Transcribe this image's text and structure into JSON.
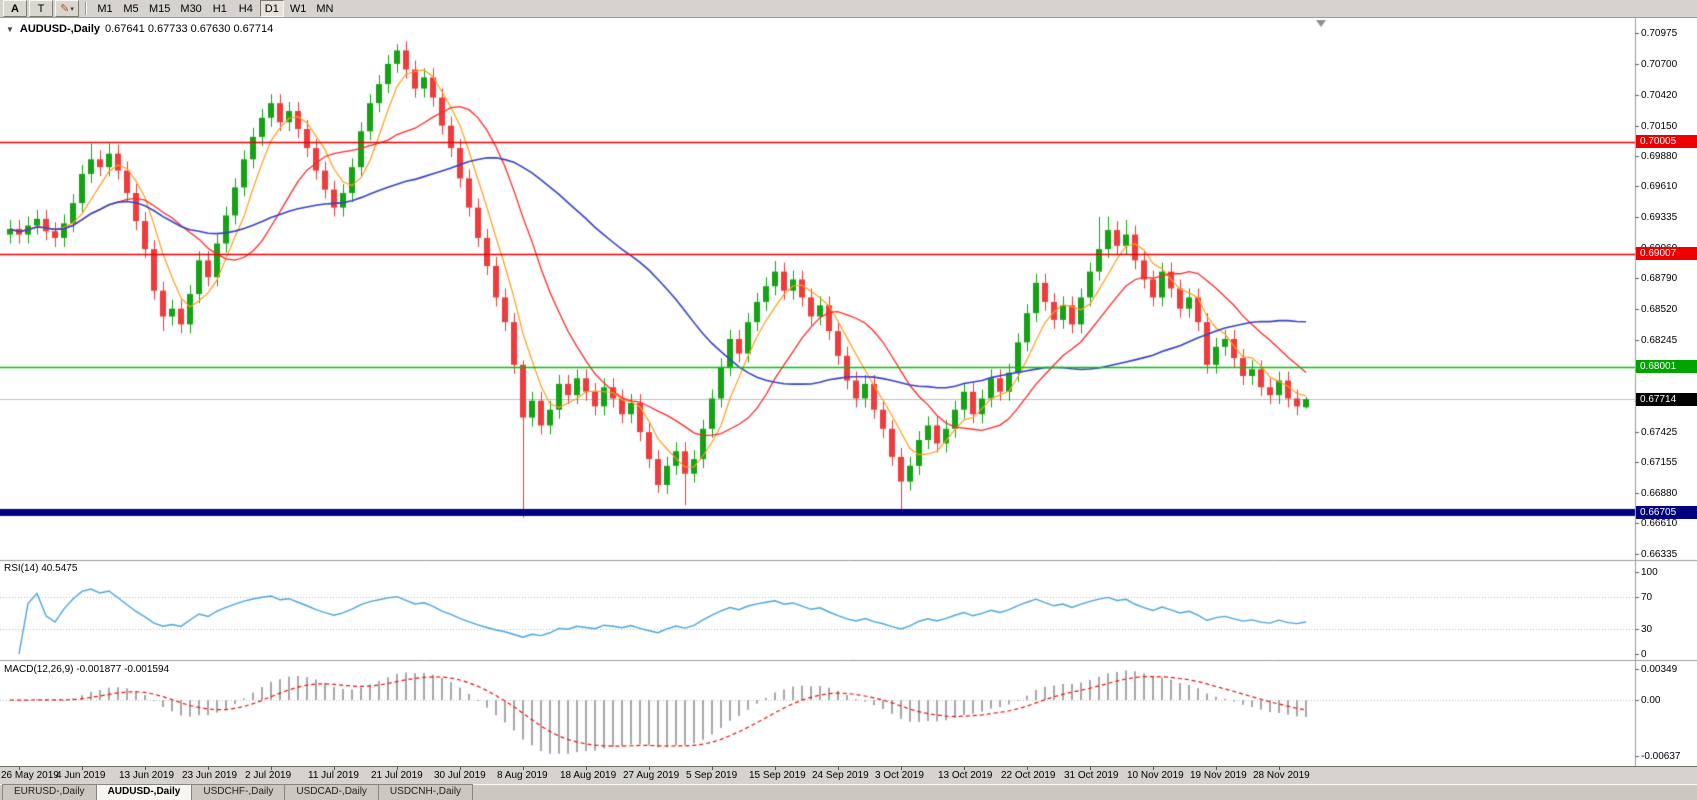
{
  "toolbar": {
    "left_buttons": [
      {
        "label": "A"
      },
      {
        "label": "T"
      }
    ],
    "draw_tool": {
      "icon": "pencil-icon",
      "dropdown": "▾"
    },
    "timeframes": [
      {
        "label": "M1",
        "active": false
      },
      {
        "label": "M5",
        "active": false
      },
      {
        "label": "M15",
        "active": false
      },
      {
        "label": "M30",
        "active": false
      },
      {
        "label": "H1",
        "active": false
      },
      {
        "label": "H4",
        "active": false
      },
      {
        "label": "D1",
        "active": true
      },
      {
        "label": "W1",
        "active": false
      },
      {
        "label": "MN",
        "active": false
      }
    ]
  },
  "chart": {
    "title": "AUDUSD-,Daily",
    "quote_line": "0.67641 0.67733 0.67630 0.67714"
  },
  "panels": {
    "rsi_label": "RSI(14) 40.5475",
    "macd_label": "MACD(12,26,9) -0.001877 -0.001594"
  },
  "tabs": [
    {
      "label": "EURUSD-,Daily",
      "active": false
    },
    {
      "label": "AUDUSD-,Daily",
      "active": true
    },
    {
      "label": "USDCHF-,Daily",
      "active": false
    },
    {
      "label": "USDCAD-,Daily",
      "active": false
    },
    {
      "label": "USDCNH-,Daily",
      "active": false
    }
  ],
  "chart_data": {
    "type": "candlestick",
    "symbol": "AUDUSD",
    "timeframe": "Daily",
    "quote": {
      "open": 0.67641,
      "high": 0.67733,
      "low": 0.6763,
      "close": 0.67714
    },
    "colors": {
      "up": "#14a314",
      "down": "#ef3b3b",
      "background": "#ffffff",
      "current_line": "#c0c0c0",
      "separator": "#9c9c9c"
    },
    "y_axis": {
      "min": 0.66335,
      "max": 0.70975,
      "ticks": [
        "0.70975",
        "0.70700",
        "0.70420",
        "0.70150",
        "0.69880",
        "0.69610",
        "0.69335",
        "0.69060",
        "0.68790",
        "0.68520",
        "0.68245",
        "0.67970",
        "0.67700",
        "0.67425",
        "0.67155",
        "0.66880",
        "0.66610",
        "0.66335"
      ]
    },
    "hlines": [
      {
        "value": 0.70005,
        "label": "0.70005",
        "color": "#ee0000",
        "width": 1.4,
        "label_bg": "#ee0000"
      },
      {
        "value": 0.69007,
        "label": "0.69007",
        "color": "#ee0000",
        "width": 1.4,
        "label_bg": "#ee0000"
      },
      {
        "value": 0.68001,
        "label": "0.68001",
        "color": "#00c400",
        "width": 1.6,
        "label_bg": "#00a400"
      },
      {
        "value": 0.66705,
        "label": "0.66705",
        "color": "#000080",
        "width": 7,
        "label_bg": "#000080"
      }
    ],
    "current_price": {
      "value": 0.67714,
      "label": "0.67714",
      "label_bg": "#000000"
    },
    "moving_averages": [
      {
        "period": 5,
        "color": "#ff9d1e",
        "width": 1.2
      },
      {
        "period": 13,
        "color": "#ff2a2a",
        "width": 1.3
      },
      {
        "period": 34,
        "color": "#3742c8",
        "width": 1.6
      }
    ],
    "x_axis": {
      "labels": [
        "26 May 2019",
        "4 Jun 2019",
        "13 Jun 2019",
        "23 Jun 2019",
        "2 Jul 2019",
        "11 Jul 2019",
        "21 Jul 2019",
        "30 Jul 2019",
        "8 Aug 2019",
        "18 Aug 2019",
        "27 Aug 2019",
        "5 Sep 2019",
        "15 Sep 2019",
        "24 Sep 2019",
        "3 Oct 2019",
        "13 Oct 2019",
        "22 Oct 2019",
        "31 Oct 2019",
        "10 Nov 2019",
        "19 Nov 2019",
        "28 Nov 2019"
      ],
      "first_label_index": 1,
      "label_step": 7
    },
    "rsi": {
      "period": 14,
      "current": 40.5475,
      "color": "#4da4de",
      "scale_ticks": [
        "100",
        "70",
        "30",
        "0"
      ],
      "scale_values": [
        100,
        70,
        30,
        0
      ],
      "levels": [
        70,
        30
      ]
    },
    "macd": {
      "fast": 12,
      "slow": 26,
      "signal": 9,
      "macd_current": -0.001877,
      "signal_current": -0.001594,
      "scale_ticks": [
        "0.00349",
        "0.00",
        "-0.00637"
      ],
      "scale_values": [
        0.00349,
        0,
        -0.00637
      ],
      "histogram_color": "#a8a8a8",
      "signal_color": "#ee1111"
    },
    "ohlc": [
      [
        0.6918,
        0.6931,
        0.691,
        0.6923
      ],
      [
        0.6923,
        0.6931,
        0.691,
        0.6918
      ],
      [
        0.6918,
        0.6934,
        0.691,
        0.6926
      ],
      [
        0.6926,
        0.694,
        0.6918,
        0.6932
      ],
      [
        0.6932,
        0.694,
        0.6913,
        0.6921
      ],
      [
        0.6921,
        0.6929,
        0.6907,
        0.6915
      ],
      [
        0.6915,
        0.6936,
        0.6907,
        0.6928
      ],
      [
        0.6928,
        0.6954,
        0.692,
        0.6946
      ],
      [
        0.6946,
        0.698,
        0.6938,
        0.6972
      ],
      [
        0.6972,
        0.6999,
        0.6964,
        0.6985
      ],
      [
        0.6985,
        0.6993,
        0.697,
        0.6978
      ],
      [
        0.6978,
        0.6999,
        0.697,
        0.699
      ],
      [
        0.699,
        0.6998,
        0.6967,
        0.6975
      ],
      [
        0.6975,
        0.6983,
        0.6947,
        0.6955
      ],
      [
        0.6955,
        0.6963,
        0.6922,
        0.693
      ],
      [
        0.693,
        0.6938,
        0.6897,
        0.6905
      ],
      [
        0.6905,
        0.6913,
        0.686,
        0.6868
      ],
      [
        0.6868,
        0.6876,
        0.6832,
        0.6845
      ],
      [
        0.6845,
        0.686,
        0.6837,
        0.6852
      ],
      [
        0.6852,
        0.686,
        0.683,
        0.6838
      ],
      [
        0.6838,
        0.6873,
        0.683,
        0.6865
      ],
      [
        0.6865,
        0.6903,
        0.6857,
        0.6895
      ],
      [
        0.6895,
        0.6903,
        0.6872,
        0.688
      ],
      [
        0.688,
        0.6918,
        0.6872,
        0.691
      ],
      [
        0.691,
        0.6943,
        0.6902,
        0.6935
      ],
      [
        0.6935,
        0.6968,
        0.6927,
        0.696
      ],
      [
        0.696,
        0.6993,
        0.6952,
        0.6985
      ],
      [
        0.6985,
        0.7013,
        0.6977,
        0.7005
      ],
      [
        0.7005,
        0.703,
        0.6997,
        0.7022
      ],
      [
        0.7022,
        0.7043,
        0.7014,
        0.7035
      ],
      [
        0.7035,
        0.7043,
        0.701,
        0.7018
      ],
      [
        0.7018,
        0.7036,
        0.701,
        0.7028
      ],
      [
        0.7028,
        0.7036,
        0.7004,
        0.7012
      ],
      [
        0.7012,
        0.702,
        0.6987,
        0.6995
      ],
      [
        0.6995,
        0.7003,
        0.6967,
        0.6975
      ],
      [
        0.6975,
        0.6983,
        0.695,
        0.6958
      ],
      [
        0.6958,
        0.6966,
        0.6934,
        0.6942
      ],
      [
        0.6942,
        0.6963,
        0.6934,
        0.6955
      ],
      [
        0.6955,
        0.6986,
        0.6947,
        0.6978
      ],
      [
        0.6978,
        0.7018,
        0.697,
        0.701
      ],
      [
        0.701,
        0.7043,
        0.7002,
        0.7035
      ],
      [
        0.7035,
        0.706,
        0.7027,
        0.7052
      ],
      [
        0.7052,
        0.7078,
        0.7044,
        0.707
      ],
      [
        0.707,
        0.70875,
        0.7062,
        0.7082
      ],
      [
        0.7082,
        0.709,
        0.7057,
        0.7065
      ],
      [
        0.7065,
        0.7073,
        0.704,
        0.7048
      ],
      [
        0.7048,
        0.7066,
        0.704,
        0.7058
      ],
      [
        0.7058,
        0.7066,
        0.7032,
        0.704
      ],
      [
        0.704,
        0.7048,
        0.7007,
        0.7015
      ],
      [
        0.7015,
        0.7023,
        0.6987,
        0.6995
      ],
      [
        0.6995,
        0.7003,
        0.696,
        0.6968
      ],
      [
        0.6968,
        0.6976,
        0.6934,
        0.6942
      ],
      [
        0.6942,
        0.695,
        0.6907,
        0.6915
      ],
      [
        0.6915,
        0.6923,
        0.6882,
        0.689
      ],
      [
        0.689,
        0.6898,
        0.6854,
        0.6862
      ],
      [
        0.6862,
        0.687,
        0.6832,
        0.684
      ],
      [
        0.684,
        0.6848,
        0.6794,
        0.6802
      ],
      [
        0.6802,
        0.6806,
        0.6666,
        0.6755
      ],
      [
        0.6755,
        0.6778,
        0.6747,
        0.677
      ],
      [
        0.677,
        0.6778,
        0.674,
        0.6748
      ],
      [
        0.6748,
        0.677,
        0.674,
        0.6762
      ],
      [
        0.6762,
        0.6793,
        0.6754,
        0.6785
      ],
      [
        0.6785,
        0.6793,
        0.6767,
        0.6775
      ],
      [
        0.6775,
        0.6798,
        0.6767,
        0.679
      ],
      [
        0.679,
        0.6798,
        0.677,
        0.6778
      ],
      [
        0.6778,
        0.6786,
        0.6757,
        0.6765
      ],
      [
        0.6765,
        0.679,
        0.6757,
        0.6782
      ],
      [
        0.6782,
        0.679,
        0.6764,
        0.6772
      ],
      [
        0.6772,
        0.678,
        0.675,
        0.6758
      ],
      [
        0.6758,
        0.6776,
        0.675,
        0.6768
      ],
      [
        0.6768,
        0.6776,
        0.6734,
        0.6742
      ],
      [
        0.6742,
        0.675,
        0.671,
        0.6718
      ],
      [
        0.6718,
        0.6726,
        0.6688,
        0.6695
      ],
      [
        0.6695,
        0.672,
        0.6687,
        0.6712
      ],
      [
        0.6712,
        0.6733,
        0.6704,
        0.6725
      ],
      [
        0.6725,
        0.6733,
        0.6677,
        0.6705
      ],
      [
        0.6705,
        0.6726,
        0.6697,
        0.6718
      ],
      [
        0.6718,
        0.6753,
        0.671,
        0.6745
      ],
      [
        0.6745,
        0.678,
        0.6737,
        0.6772
      ],
      [
        0.6772,
        0.6808,
        0.6764,
        0.68
      ],
      [
        0.68,
        0.6833,
        0.6792,
        0.6825
      ],
      [
        0.6825,
        0.6833,
        0.6804,
        0.6812
      ],
      [
        0.6812,
        0.6848,
        0.6804,
        0.684
      ],
      [
        0.684,
        0.6866,
        0.6832,
        0.6858
      ],
      [
        0.6858,
        0.688,
        0.685,
        0.6872
      ],
      [
        0.6872,
        0.68945,
        0.6864,
        0.6885
      ],
      [
        0.6885,
        0.6893,
        0.686,
        0.6868
      ],
      [
        0.6868,
        0.6886,
        0.686,
        0.6878
      ],
      [
        0.6878,
        0.6886,
        0.6854,
        0.6862
      ],
      [
        0.6862,
        0.687,
        0.6837,
        0.6845
      ],
      [
        0.6845,
        0.6863,
        0.6837,
        0.6855
      ],
      [
        0.6855,
        0.6863,
        0.6824,
        0.6832
      ],
      [
        0.6832,
        0.684,
        0.6802,
        0.681
      ],
      [
        0.681,
        0.6818,
        0.678,
        0.6788
      ],
      [
        0.6788,
        0.6796,
        0.6764,
        0.6772
      ],
      [
        0.6772,
        0.6793,
        0.6764,
        0.6785
      ],
      [
        0.6785,
        0.6793,
        0.6754,
        0.6762
      ],
      [
        0.6762,
        0.677,
        0.6737,
        0.6745
      ],
      [
        0.6745,
        0.6753,
        0.6712,
        0.672
      ],
      [
        0.672,
        0.6728,
        0.667,
        0.6698
      ],
      [
        0.6698,
        0.672,
        0.669,
        0.6712
      ],
      [
        0.6712,
        0.6743,
        0.6704,
        0.6735
      ],
      [
        0.6735,
        0.6756,
        0.6727,
        0.6748
      ],
      [
        0.6748,
        0.6756,
        0.6724,
        0.6732
      ],
      [
        0.6732,
        0.6753,
        0.6724,
        0.6745
      ],
      [
        0.6745,
        0.677,
        0.6737,
        0.6762
      ],
      [
        0.6762,
        0.6786,
        0.6754,
        0.6778
      ],
      [
        0.6778,
        0.6786,
        0.675,
        0.6758
      ],
      [
        0.6758,
        0.678,
        0.675,
        0.6772
      ],
      [
        0.6772,
        0.6798,
        0.6764,
        0.679
      ],
      [
        0.679,
        0.6798,
        0.677,
        0.6778
      ],
      [
        0.6778,
        0.6803,
        0.677,
        0.6795
      ],
      [
        0.6795,
        0.683,
        0.6787,
        0.6822
      ],
      [
        0.6822,
        0.6856,
        0.6814,
        0.6848
      ],
      [
        0.6848,
        0.6883,
        0.684,
        0.6875
      ],
      [
        0.6875,
        0.6883,
        0.685,
        0.6858
      ],
      [
        0.6858,
        0.6866,
        0.6834,
        0.6842
      ],
      [
        0.6842,
        0.6863,
        0.6834,
        0.6855
      ],
      [
        0.6855,
        0.6863,
        0.683,
        0.6838
      ],
      [
        0.6838,
        0.687,
        0.683,
        0.6862
      ],
      [
        0.6862,
        0.6893,
        0.6854,
        0.6885
      ],
      [
        0.6885,
        0.69337,
        0.6877,
        0.6905
      ],
      [
        0.6905,
        0.6934,
        0.6897,
        0.6922
      ],
      [
        0.6922,
        0.693,
        0.69,
        0.6908
      ],
      [
        0.6908,
        0.6931,
        0.69,
        0.6918
      ],
      [
        0.6918,
        0.6926,
        0.6887,
        0.6895
      ],
      [
        0.6895,
        0.6903,
        0.687,
        0.6878
      ],
      [
        0.6878,
        0.6886,
        0.6854,
        0.6862
      ],
      [
        0.6862,
        0.6893,
        0.6854,
        0.6885
      ],
      [
        0.6885,
        0.6893,
        0.6862,
        0.687
      ],
      [
        0.687,
        0.6878,
        0.6844,
        0.6852
      ],
      [
        0.6852,
        0.687,
        0.6844,
        0.6862
      ],
      [
        0.6862,
        0.687,
        0.6832,
        0.684
      ],
      [
        0.684,
        0.6848,
        0.6794,
        0.6802
      ],
      [
        0.6802,
        0.6826,
        0.6794,
        0.6818
      ],
      [
        0.6818,
        0.6833,
        0.681,
        0.6825
      ],
      [
        0.6825,
        0.6833,
        0.68,
        0.6808
      ],
      [
        0.6808,
        0.6816,
        0.6784,
        0.6792
      ],
      [
        0.6792,
        0.6806,
        0.6784,
        0.6798
      ],
      [
        0.6798,
        0.6806,
        0.6774,
        0.6782
      ],
      [
        0.6782,
        0.679,
        0.6767,
        0.6775
      ],
      [
        0.6775,
        0.6796,
        0.6767,
        0.6788
      ],
      [
        0.6788,
        0.6796,
        0.6764,
        0.6772
      ],
      [
        0.6772,
        0.678,
        0.6757,
        0.6765
      ],
      [
        0.67641,
        0.67733,
        0.6763,
        0.67714
      ]
    ]
  }
}
